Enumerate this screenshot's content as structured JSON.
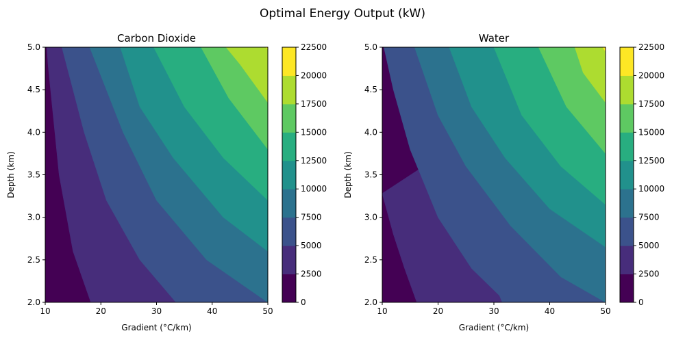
{
  "suptitle": "Optimal Energy Output (kW)",
  "colors": [
    "#440154",
    "#472d7b",
    "#3b528b",
    "#2c728e",
    "#21918c",
    "#28ae80",
    "#5ec962",
    "#addc30",
    "#fde725"
  ],
  "chart_data": {
    "type": "heatmap",
    "subtype": "filled-contour",
    "x": {
      "label": "Gradient (°C/km)",
      "range": [
        10,
        50
      ],
      "ticks": [
        "10",
        "20",
        "30",
        "40",
        "50"
      ]
    },
    "y": {
      "label": "Depth (km)",
      "range": [
        2.0,
        5.0
      ],
      "ticks": [
        "2.0",
        "2.5",
        "3.0",
        "3.5",
        "4.0",
        "4.5",
        "5.0"
      ]
    },
    "levels": [
      0,
      2500,
      5000,
      7500,
      10000,
      12500,
      15000,
      17500,
      20000,
      22500
    ],
    "colorbar_ticks": [
      "0",
      "2500",
      "5000",
      "7500",
      "10000",
      "12500",
      "15000",
      "17500",
      "20000",
      "22500"
    ],
    "panels": [
      {
        "title": "Carbon Dioxide",
        "boundaries": [
          {
            "level": 2500,
            "points": [
              [
                18.2,
                2.0
              ],
              [
                15.0,
                2.6
              ],
              [
                12.5,
                3.5
              ],
              [
                10.5,
                4.8
              ],
              [
                10.3,
                5.0
              ]
            ]
          },
          {
            "level": 5000,
            "points": [
              [
                33.5,
                2.0
              ],
              [
                27.0,
                2.5
              ],
              [
                21.0,
                3.2
              ],
              [
                17.0,
                4.0
              ],
              [
                13.0,
                5.0
              ]
            ]
          },
          {
            "level": 7500,
            "points": [
              [
                50.0,
                2.0
              ],
              [
                39.0,
                2.5
              ],
              [
                30.0,
                3.2
              ],
              [
                24.0,
                4.0
              ],
              [
                18.0,
                5.0
              ]
            ]
          },
          {
            "level": 10000,
            "points": [
              [
                50.0,
                2.6
              ],
              [
                42.0,
                3.0
              ],
              [
                33.0,
                3.7
              ],
              [
                27.0,
                4.3
              ],
              [
                23.5,
                5.0
              ]
            ]
          },
          {
            "level": 12500,
            "points": [
              [
                50.0,
                3.2
              ],
              [
                42.0,
                3.7
              ],
              [
                35.0,
                4.3
              ],
              [
                29.5,
                5.0
              ]
            ]
          },
          {
            "level": 15000,
            "points": [
              [
                50.0,
                3.8
              ],
              [
                43.0,
                4.4
              ],
              [
                38.0,
                5.0
              ]
            ]
          },
          {
            "level": 17500,
            "points": [
              [
                50.0,
                4.35
              ],
              [
                45.0,
                4.8
              ],
              [
                42.5,
                5.0
              ]
            ]
          },
          {
            "level": 20000,
            "points": [
              [
                50.0,
                4.98
              ],
              [
                49.6,
                5.0
              ]
            ]
          }
        ]
      },
      {
        "title": "Water",
        "boundaries": [
          {
            "level": 2500,
            "points": [
              [
                16.2,
                2.0
              ],
              [
                14.0,
                2.4
              ],
              [
                12.0,
                2.8
              ],
              [
                10.0,
                3.28
              ]
            ]
          },
          {
            "level": 5000,
            "points": [
              [
                31.5,
                2.0
              ],
              [
                31.0,
                2.08
              ],
              [
                26.0,
                2.4
              ],
              [
                20.0,
                3.0
              ],
              [
                15.0,
                3.8
              ],
              [
                12.0,
                4.5
              ],
              [
                10.3,
                5.0
              ]
            ]
          },
          {
            "level": 7500,
            "points": [
              [
                50.0,
                2.0
              ],
              [
                42.0,
                2.3
              ],
              [
                33.0,
                2.9
              ],
              [
                25.0,
                3.6
              ],
              [
                20.0,
                4.2
              ],
              [
                15.8,
                5.0
              ]
            ]
          },
          {
            "level": 10000,
            "points": [
              [
                50.0,
                2.65
              ],
              [
                40.0,
                3.1
              ],
              [
                32.0,
                3.7
              ],
              [
                26.0,
                4.3
              ],
              [
                22.0,
                5.0
              ]
            ]
          },
          {
            "level": 12500,
            "points": [
              [
                50.0,
                3.15
              ],
              [
                42.0,
                3.6
              ],
              [
                35.0,
                4.2
              ],
              [
                30.0,
                5.0
              ]
            ]
          },
          {
            "level": 15000,
            "points": [
              [
                50.0,
                3.75
              ],
              [
                43.0,
                4.3
              ],
              [
                38.0,
                5.0
              ]
            ]
          },
          {
            "level": 17500,
            "points": [
              [
                50.0,
                4.35
              ],
              [
                46.0,
                4.7
              ],
              [
                44.5,
                5.0
              ]
            ]
          },
          {
            "level": 20000,
            "points": [
              [
                50.0,
                4.95
              ],
              [
                49.5,
                5.0
              ]
            ]
          }
        ]
      }
    ]
  }
}
